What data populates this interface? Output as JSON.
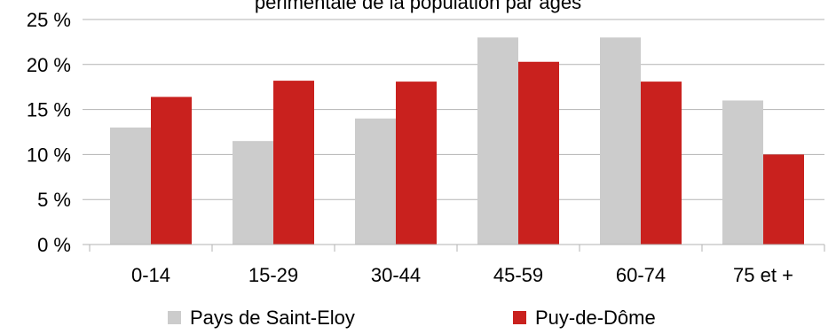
{
  "chart_data": {
    "type": "bar",
    "title": "",
    "title_partial": "périmentale de la population par âges",
    "categories": [
      "0-14",
      "15-29",
      "30-44",
      "45-59",
      "60-74",
      "75 et +"
    ],
    "series": [
      {
        "name": "Pays de Saint-Eloy",
        "color": "#cccccc",
        "values": [
          13,
          11.5,
          14,
          23,
          23,
          16
        ]
      },
      {
        "name": "Puy-de-Dôme",
        "color": "#c9211e",
        "values": [
          16.4,
          18.2,
          18.1,
          20.3,
          18.1,
          10
        ]
      }
    ],
    "ylim": [
      0,
      25
    ],
    "yticks": [
      0,
      5,
      10,
      15,
      20,
      25
    ],
    "ytick_labels": [
      "0 %",
      "5 %",
      "10 %",
      "15 %",
      "20 %",
      "25 %"
    ],
    "xlabel": "",
    "ylabel": "",
    "grid": true,
    "legend_position": "bottom"
  }
}
